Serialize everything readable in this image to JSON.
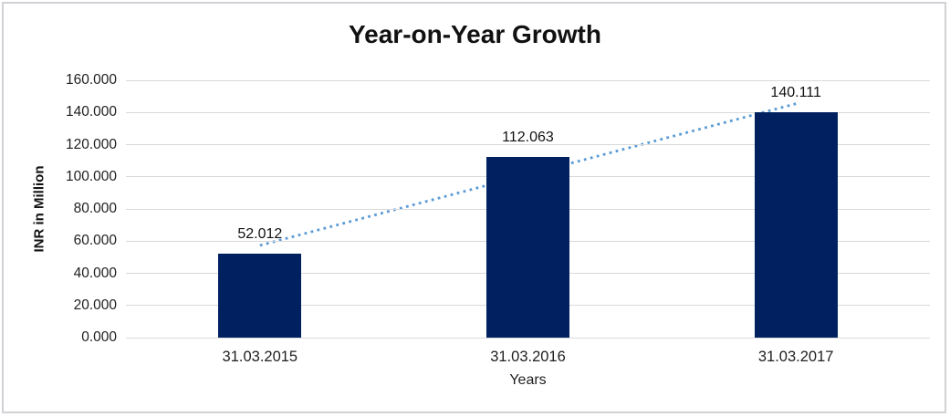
{
  "chart": {
    "title": "Year-on-Year Growth",
    "y_axis_title": "INR in Million",
    "x_axis_title": "Years",
    "colors": {
      "bar": "#002060",
      "trendline": "#5B9BD5",
      "gridline": "#D9D9D9",
      "text": "#111111",
      "frame_border": "#D1D1D6",
      "background": "#FFFFFF"
    }
  },
  "chart_data": {
    "type": "bar",
    "title": "Year-on-Year Growth",
    "xlabel": "Years",
    "ylabel": "INR in Million",
    "categories": [
      "31.03.2015",
      "31.03.2016",
      "31.03.2017"
    ],
    "values": [
      52.012,
      112.063,
      140.111
    ],
    "data_labels": [
      "52.012",
      "112.063",
      "140.111"
    ],
    "ylim": [
      0,
      160
    ],
    "y_tick_step": 20,
    "y_tick_labels": [
      "0.000",
      "20.000",
      "40.000",
      "60.000",
      "80.000",
      "100.000",
      "120.000",
      "140.000",
      "160.000"
    ],
    "grid": true,
    "legend": "none",
    "bar_color": "#002060",
    "trendline": {
      "type": "linear",
      "style": "dotted",
      "color": "#5B9BD5"
    }
  }
}
